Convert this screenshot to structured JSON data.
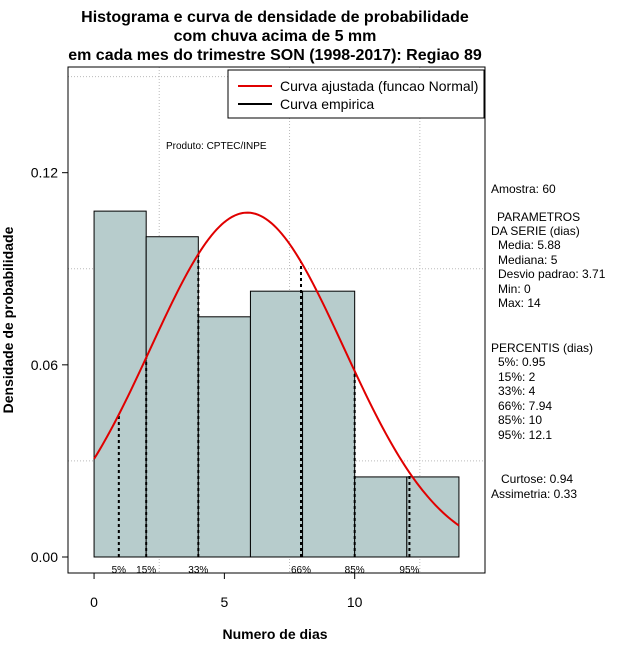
{
  "chart_data": {
    "type": "bar",
    "title_lines": [
      "Histograma e curva de densidade de probabilidade",
      "com chuva acima de 5 mm",
      "em cada mes do trimestre SON (1998-2017): Regiao 89"
    ],
    "xlabel": "Numero de dias",
    "ylabel": "Densidade de probabilidade",
    "xlim": [
      -1,
      15
    ],
    "ylim": [
      -0.005,
      0.153
    ],
    "x_ticks": [
      0,
      5,
      10
    ],
    "y_ticks": [
      0.0,
      0.06,
      0.12
    ],
    "y_tick_labels": [
      "0.00",
      "0.06",
      "0.12"
    ],
    "bins": [
      {
        "start": 0,
        "end": 2,
        "density": 0.108
      },
      {
        "start": 2,
        "end": 4,
        "density": 0.1
      },
      {
        "start": 4,
        "end": 6,
        "density": 0.075
      },
      {
        "start": 6,
        "end": 8,
        "density": 0.083
      },
      {
        "start": 8,
        "end": 10,
        "density": 0.083
      },
      {
        "start": 10,
        "end": 12,
        "density": 0.025
      },
      {
        "start": 12,
        "end": 14,
        "density": 0.025
      }
    ],
    "normal_curve": {
      "mean": 5.88,
      "sd": 3.71,
      "x_from": 0,
      "x_to": 14,
      "color": "#e00000"
    },
    "empirical_color": "#000000",
    "bar_fill": "#b7cccc",
    "percentile_markers": [
      {
        "label": "5%",
        "value": 0.95
      },
      {
        "label": "15%",
        "value": 2
      },
      {
        "label": "33%",
        "value": 4
      },
      {
        "label": "66%",
        "value": 7.94
      },
      {
        "label": "85%",
        "value": 10
      },
      {
        "label": "95%",
        "value": 12.1
      }
    ],
    "legend": [
      {
        "label": "Curva ajustada (funcao Normal)",
        "color": "#e00000"
      },
      {
        "label": "Curva empirica",
        "color": "#000000"
      }
    ],
    "legend_position": "top-right",
    "annotation": "Produto: CPTEC/INPE",
    "grid": true
  },
  "stats_panel": [
    "Amostra: 60",
    "PARAMETROS",
    "DA SERIE (dias)",
    "Media: 5.88",
    "Mediana: 5",
    "Desvio padrao: 3.71",
    "Min: 0",
    "Max: 14",
    "PERCENTIS (dias)",
    "5%: 0.95",
    "15%: 2",
    "33%: 4",
    "66%: 7.94",
    "85%: 10",
    "95%: 12.1",
    "Curtose: 0.94",
    "Assimetria: 0.33"
  ]
}
